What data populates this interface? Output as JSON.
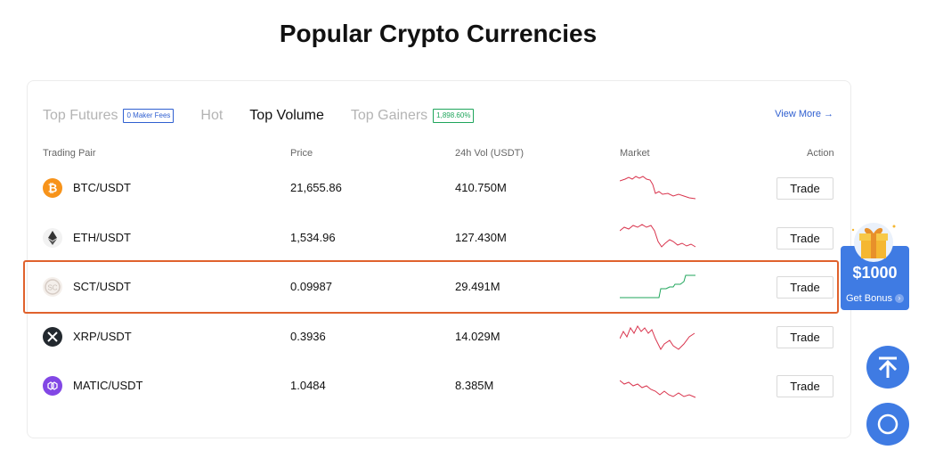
{
  "page": {
    "title": "Popular Crypto Currencies"
  },
  "tabs": [
    {
      "label": "Top Futures",
      "badge": "0 Maker Fees",
      "active": false
    },
    {
      "label": "Hot",
      "active": false
    },
    {
      "label": "Top Volume",
      "active": true
    },
    {
      "label": "Top Gainers",
      "badge": "1,898.60%",
      "active": false
    }
  ],
  "view_more": "View More →",
  "table": {
    "headers": {
      "pair": "Trading Pair",
      "price": "Price",
      "volume": "24h Vol (USDT)",
      "market": "Market",
      "action": "Action"
    },
    "rows": [
      {
        "pair": "BTC/USDT",
        "price": "21,655.86",
        "volume": "410.750M",
        "action": "Trade",
        "icon": "bitcoin-icon",
        "color": "#f7931a",
        "trend": "down"
      },
      {
        "pair": "ETH/USDT",
        "price": "1,534.96",
        "volume": "127.430M",
        "action": "Trade",
        "icon": "ethereum-icon",
        "color": "#333333",
        "trend": "down"
      },
      {
        "pair": "SCT/USDT",
        "price": "0.09987",
        "volume": "29.491M",
        "action": "Trade",
        "icon": "sct-icon",
        "color": "#c9c2bd",
        "trend": "up",
        "highlighted": true
      },
      {
        "pair": "XRP/USDT",
        "price": "0.3936",
        "volume": "14.029M",
        "action": "Trade",
        "icon": "xrp-icon",
        "color": "#23292f",
        "trend": "down"
      },
      {
        "pair": "MATIC/USDT",
        "price": "1.0484",
        "volume": "8.385M",
        "action": "Trade",
        "icon": "polygon-icon",
        "color": "#8247e5",
        "trend": "down"
      }
    ]
  },
  "bonus": {
    "amount": "$1000",
    "label": "Get Bonus"
  },
  "colors": {
    "accent": "#3f7be3",
    "up": "#1fa55b",
    "down": "#d9344d",
    "highlight": "#e0622d"
  }
}
